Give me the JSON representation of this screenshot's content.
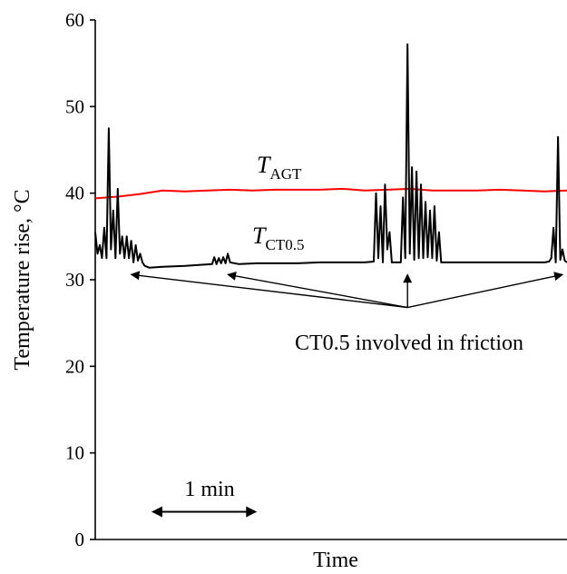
{
  "chart_data": {
    "type": "line",
    "title": "",
    "xlabel": "Time",
    "ylabel": "Temperature rise, °C",
    "xlim": [
      0,
      10.5
    ],
    "ylim": [
      0,
      60
    ],
    "yticks": [
      0,
      10,
      20,
      30,
      40,
      50,
      60
    ],
    "grid": false,
    "legend": "none",
    "series": [
      {
        "name": "TAGT",
        "label": {
          "main": "T",
          "sub": "AGT"
        },
        "color": "#ff0000",
        "x": [
          0,
          0.5,
          1,
          1.5,
          2,
          2.5,
          3,
          3.5,
          4,
          4.5,
          5,
          5.5,
          6,
          6.5,
          7,
          7.5,
          8,
          8.5,
          9,
          9.5,
          10,
          10.5
        ],
        "y": [
          39.4,
          39.6,
          39.9,
          40.3,
          40.2,
          40.3,
          40.4,
          40.3,
          40.4,
          40.4,
          40.4,
          40.5,
          40.3,
          40.4,
          40.5,
          40.3,
          40.3,
          40.3,
          40.4,
          40.3,
          40.2,
          40.3
        ]
      },
      {
        "name": "TCT0.5",
        "label": {
          "main": "T",
          "sub": "CT0.5"
        },
        "color": "#000000",
        "x": [
          0,
          0.05,
          0.1,
          0.15,
          0.2,
          0.25,
          0.3,
          0.35,
          0.4,
          0.45,
          0.5,
          0.55,
          0.6,
          0.65,
          0.7,
          0.75,
          0.8,
          0.85,
          0.9,
          0.95,
          1.0,
          1.05,
          1.1,
          1.2,
          1.5,
          2.0,
          2.6,
          2.65,
          2.7,
          2.75,
          2.8,
          2.85,
          2.9,
          2.95,
          3.0,
          3.2,
          3.6,
          4.0,
          4.5,
          5.0,
          5.5,
          6.0,
          6.2,
          6.25,
          6.3,
          6.35,
          6.4,
          6.45,
          6.5,
          6.55,
          6.6,
          6.8,
          6.85,
          6.9,
          6.95,
          7.0,
          7.05,
          7.1,
          7.15,
          7.2,
          7.25,
          7.3,
          7.35,
          7.4,
          7.45,
          7.5,
          7.55,
          7.6,
          7.65,
          7.7,
          7.8,
          8.0,
          8.5,
          9.0,
          9.5,
          10.0,
          10.1,
          10.15,
          10.2,
          10.25,
          10.3,
          10.35,
          10.4,
          10.45,
          10.5
        ],
        "y": [
          35.5,
          33,
          34,
          32.5,
          36,
          32.5,
          47.5,
          33.5,
          38,
          32.5,
          40.5,
          33,
          35,
          32.5,
          35,
          32.5,
          34.5,
          32,
          34,
          32.2,
          33,
          32,
          31.6,
          31.4,
          31.5,
          31.6,
          31.8,
          32.6,
          31.8,
          32.5,
          31.9,
          32.6,
          31.9,
          33,
          32,
          31.8,
          31.9,
          31.9,
          31.9,
          32,
          32,
          32,
          32.1,
          40,
          32.5,
          38.5,
          32,
          41,
          33.5,
          35.5,
          32,
          32,
          39.5,
          32.5,
          57.2,
          33,
          43,
          32.3,
          42.5,
          32.5,
          41,
          32.5,
          39,
          32.6,
          38,
          32.5,
          38.5,
          32.2,
          35.5,
          32,
          32,
          32,
          32,
          32,
          32,
          32,
          32.1,
          32.5,
          36,
          32,
          46.5,
          32.3,
          33.5,
          32.2,
          32
        ]
      }
    ],
    "annotations": {
      "text": "CT0.5 involved in friction",
      "arrow_origin": {
        "x": 6.95,
        "y": 26.8
      },
      "arrow_targets": [
        {
          "x": 0.8,
          "y": 30.6
        },
        {
          "x": 2.95,
          "y": 30.6
        },
        {
          "x": 6.95,
          "y": 30.6
        },
        {
          "x": 10.4,
          "y": 30.6
        }
      ],
      "scale_bar": {
        "label": "1 min",
        "x_start": 1.25,
        "x_end": 3.6,
        "y": 3.2
      }
    }
  }
}
